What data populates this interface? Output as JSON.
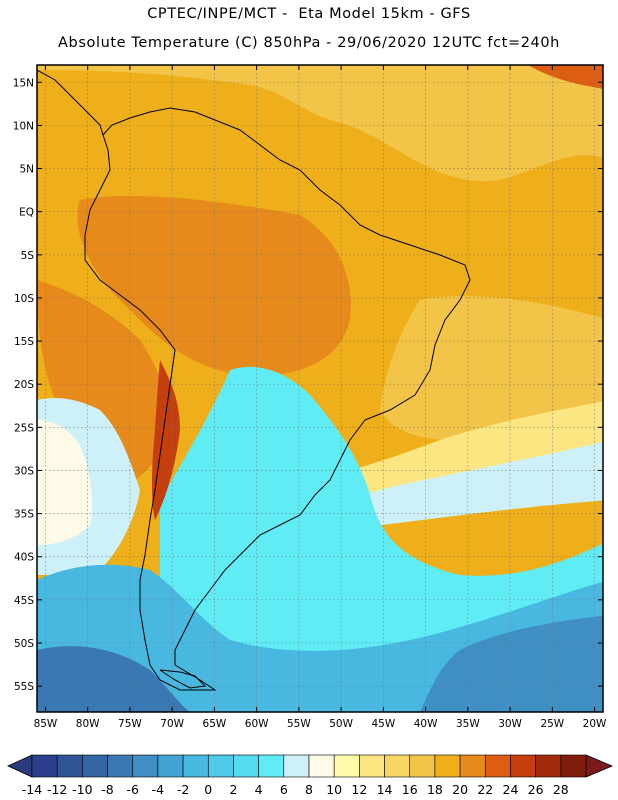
{
  "header": {
    "line1": "CPTEC/INPE/MCT -  Eta Model 15km - GFS",
    "line2": "Absolute Temperature (C) 850hPa - 29/06/2020 12UTC fct=240h"
  },
  "map": {
    "lat_range": [
      -58,
      17
    ],
    "lon_range": [
      -86,
      -19
    ],
    "lat_ticks": [
      "15N",
      "10N",
      "5N",
      "EQ",
      "5S",
      "10S",
      "15S",
      "20S",
      "25S",
      "30S",
      "35S",
      "40S",
      "45S",
      "50S",
      "55S"
    ],
    "lon_ticks": [
      "85W",
      "80W",
      "75W",
      "70W",
      "65W",
      "60W",
      "55W",
      "50W",
      "45W",
      "40W",
      "35W",
      "30W",
      "25W",
      "20W"
    ],
    "lat_tick_values": [
      15,
      10,
      5,
      0,
      -5,
      -10,
      -15,
      -20,
      -25,
      -30,
      -35,
      -40,
      -45,
      -50,
      -55
    ],
    "lon_tick_values": [
      -85,
      -80,
      -75,
      -70,
      -65,
      -60,
      -55,
      -50,
      -45,
      -40,
      -35,
      -30,
      -25,
      -20
    ],
    "field": "Absolute Temperature (C) at 850hPa",
    "regions": [
      {
        "name": "tropical-orange-field",
        "level": 18
      },
      {
        "name": "amazon-deep-orange",
        "level": 20
      },
      {
        "name": "caribbean-warm-corner",
        "level": 22
      },
      {
        "name": "atlantic-warm-band",
        "level": 16
      },
      {
        "name": "subtropical-yellow-band",
        "level": 12
      },
      {
        "name": "cold-front-band",
        "level": 6
      },
      {
        "name": "argentina-cold-air",
        "level": 2
      },
      {
        "name": "southern-ocean-cold",
        "level": -2
      },
      {
        "name": "pacific-cool-patch",
        "level": 4
      },
      {
        "name": "andes-warm-spine",
        "level": 22
      }
    ]
  },
  "colorbar": {
    "labels": [
      "-14",
      "-12",
      "-10",
      "-8",
      "-6",
      "-4",
      "-2",
      "0",
      "2",
      "4",
      "6",
      "8",
      "10",
      "12",
      "14",
      "16",
      "18",
      "20",
      "22",
      "24",
      "26",
      "28"
    ],
    "colors": [
      "#2b3f8c",
      "#2f5597",
      "#3566a4",
      "#3a78b3",
      "#3f8ec4",
      "#43a3d3",
      "#48b8e0",
      "#4fcbea",
      "#56dcf0",
      "#60ecf5",
      "#cef1f9",
      "#fff9e8",
      "#fffbaa",
      "#fbe682",
      "#f7d764",
      "#f2c447",
      "#eeaf1a",
      "#e68b1b",
      "#de5e11",
      "#c43e0e",
      "#a12a0c",
      "#7f1c0b"
    ],
    "under_color": "#2a3a7f",
    "over_color": "#7a1a1a"
  }
}
